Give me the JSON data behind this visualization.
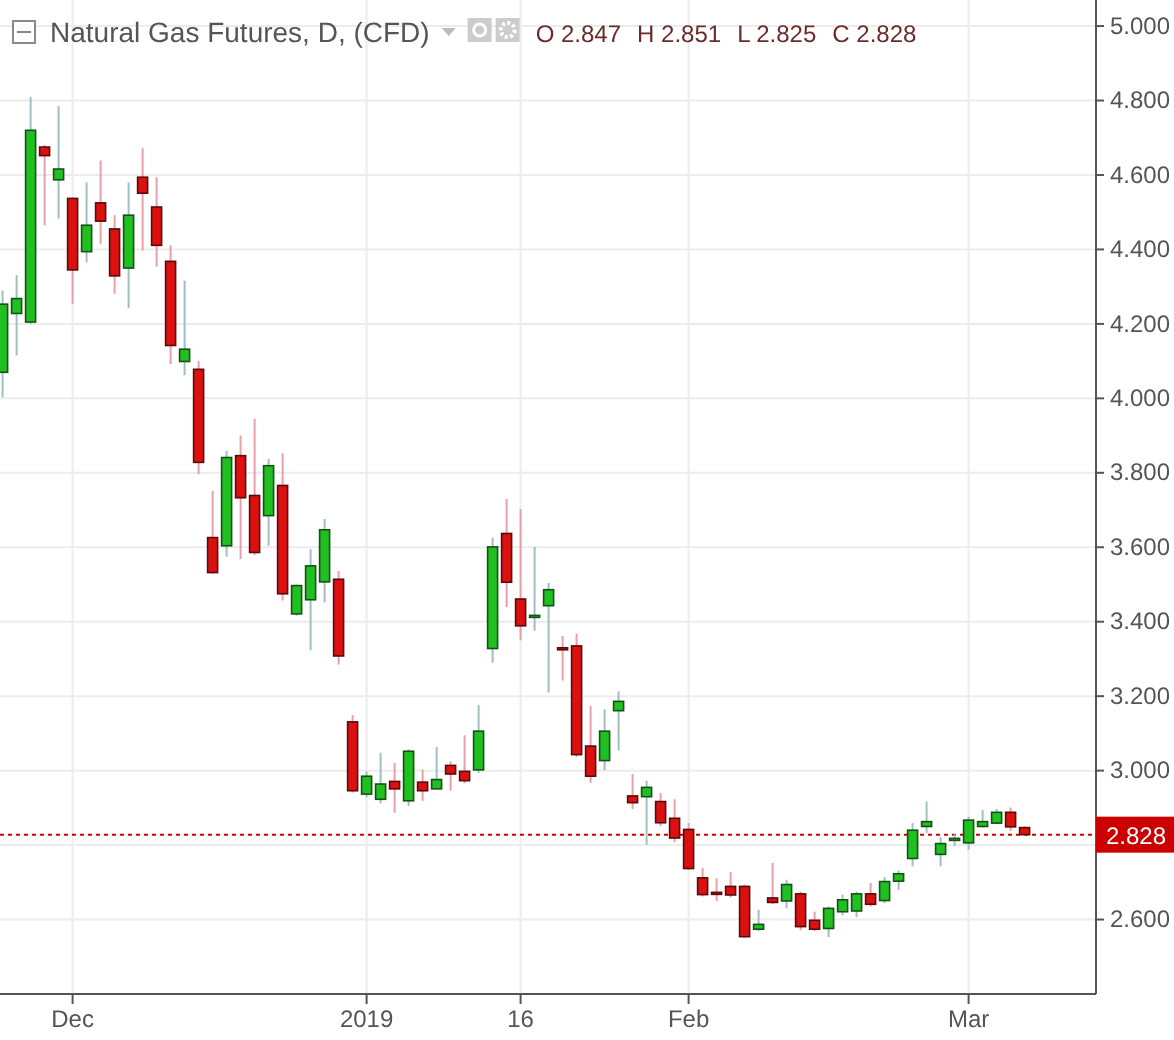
{
  "chart_data": {
    "type": "candlestick",
    "title": "Natural Gas Futures, D, (CFD)",
    "annotations": [
      "O 2.847",
      "H 2.851",
      "L 2.825",
      "C 2.828"
    ],
    "categories": [
      null,
      null,
      null,
      null,
      null,
      "Dec",
      null,
      null,
      null,
      null,
      null,
      null,
      null,
      null,
      null,
      null,
      null,
      null,
      null,
      null,
      null,
      null,
      null,
      null,
      null,
      null,
      "2019",
      null,
      null,
      null,
      null,
      null,
      null,
      null,
      null,
      null,
      null,
      "16",
      null,
      null,
      null,
      null,
      null,
      null,
      null,
      null,
      null,
      null,
      null,
      "Feb",
      null,
      null,
      null,
      null,
      null,
      null,
      null,
      null,
      null,
      null,
      null,
      null,
      null,
      null,
      null,
      null,
      null,
      null,
      null,
      "Mar",
      null,
      null,
      null,
      null,
      null,
      null,
      null,
      null,
      null
    ],
    "ohlc": [
      [
        4.07,
        4.29,
        4.003,
        4.253
      ],
      [
        4.228,
        4.331,
        4.115,
        4.268
      ],
      [
        4.205,
        4.81,
        4.2,
        4.72
      ],
      [
        4.675,
        4.681,
        4.465,
        4.652
      ],
      [
        4.587,
        4.785,
        4.483,
        4.616
      ],
      [
        4.537,
        4.54,
        4.254,
        4.345
      ],
      [
        4.394,
        4.58,
        4.365,
        4.465
      ],
      [
        4.525,
        4.639,
        4.415,
        4.476
      ],
      [
        4.455,
        4.492,
        4.281,
        4.329
      ],
      [
        4.35,
        4.58,
        4.243,
        4.492
      ],
      [
        4.594,
        4.672,
        4.397,
        4.551
      ],
      [
        4.514,
        4.594,
        4.354,
        4.411
      ],
      [
        4.368,
        4.411,
        4.092,
        4.142
      ],
      [
        4.099,
        4.316,
        4.062,
        4.132
      ],
      [
        4.078,
        4.101,
        3.796,
        3.828
      ],
      [
        3.626,
        3.751,
        3.529,
        3.532
      ],
      [
        3.604,
        3.859,
        3.575,
        3.841
      ],
      [
        3.846,
        3.9,
        3.568,
        3.733
      ],
      [
        3.739,
        3.945,
        3.579,
        3.586
      ],
      [
        3.685,
        3.837,
        3.604,
        3.819
      ],
      [
        3.766,
        3.852,
        3.457,
        3.475
      ],
      [
        3.421,
        3.5,
        3.416,
        3.497
      ],
      [
        3.459,
        3.595,
        3.323,
        3.55
      ],
      [
        3.507,
        3.676,
        3.452,
        3.647
      ],
      [
        3.514,
        3.536,
        3.285,
        3.308
      ],
      [
        3.131,
        3.149,
        2.941,
        2.946
      ],
      [
        2.937,
        2.998,
        2.928,
        2.985
      ],
      [
        2.923,
        3.048,
        2.912,
        2.964
      ],
      [
        2.971,
        3.021,
        2.887,
        2.951
      ],
      [
        2.919,
        3.057,
        2.905,
        3.052
      ],
      [
        2.969,
        3.003,
        2.919,
        2.946
      ],
      [
        2.951,
        3.063,
        2.951,
        2.976
      ],
      [
        3.014,
        3.025,
        2.946,
        2.991
      ],
      [
        2.998,
        3.095,
        2.966,
        2.973
      ],
      [
        3.002,
        3.176,
        2.994,
        3.106
      ],
      [
        3.328,
        3.626,
        3.29,
        3.601
      ],
      [
        3.637,
        3.73,
        3.439,
        3.506
      ],
      [
        3.461,
        3.703,
        3.35,
        3.389
      ],
      [
        3.415,
        3.601,
        3.376,
        3.417
      ],
      [
        3.443,
        3.504,
        3.21,
        3.486
      ],
      [
        3.33,
        3.362,
        3.242,
        3.327
      ],
      [
        3.335,
        3.368,
        3.037,
        3.043
      ],
      [
        3.066,
        3.174,
        2.967,
        2.985
      ],
      [
        3.027,
        3.165,
        3.001,
        3.106
      ],
      [
        3.161,
        3.213,
        3.054,
        3.186
      ],
      [
        2.932,
        2.991,
        2.897,
        2.914
      ],
      [
        2.93,
        2.973,
        2.801,
        2.955
      ],
      [
        2.917,
        2.94,
        2.851,
        2.86
      ],
      [
        2.872,
        2.923,
        2.808,
        2.819
      ],
      [
        2.842,
        2.859,
        2.733,
        2.737
      ],
      [
        2.712,
        2.739,
        2.662,
        2.667
      ],
      [
        2.673,
        2.711,
        2.65,
        2.67
      ],
      [
        2.689,
        2.728,
        2.659,
        2.666
      ],
      [
        2.689,
        2.694,
        2.551,
        2.554
      ],
      [
        2.574,
        2.626,
        2.569,
        2.587
      ],
      [
        2.658,
        2.752,
        2.642,
        2.646
      ],
      [
        2.65,
        2.707,
        2.63,
        2.694
      ],
      [
        2.669,
        2.675,
        2.571,
        2.581
      ],
      [
        2.598,
        2.621,
        2.569,
        2.574
      ],
      [
        2.576,
        2.635,
        2.553,
        2.63
      ],
      [
        2.621,
        2.667,
        2.612,
        2.653
      ],
      [
        2.623,
        2.675,
        2.607,
        2.669
      ],
      [
        2.669,
        2.698,
        2.635,
        2.641
      ],
      [
        2.651,
        2.714,
        2.644,
        2.702
      ],
      [
        2.703,
        2.732,
        2.68,
        2.723
      ],
      [
        2.764,
        2.859,
        2.743,
        2.84
      ],
      [
        2.85,
        2.917,
        2.833,
        2.863
      ],
      [
        2.775,
        2.822,
        2.743,
        2.804
      ],
      [
        2.816,
        2.829,
        2.797,
        2.818
      ],
      [
        2.806,
        2.876,
        2.788,
        2.867
      ],
      [
        2.85,
        2.894,
        2.847,
        2.863
      ],
      [
        2.859,
        2.897,
        2.856,
        2.888
      ],
      [
        2.888,
        2.901,
        2.838,
        2.849
      ],
      [
        2.847,
        2.851,
        2.825,
        2.828
      ],
      null,
      null,
      null,
      null,
      null
    ],
    "colors": [
      "#20c020",
      "#20c020",
      "#20c020",
      "#dd1010",
      "#20c020",
      "#dd1010",
      "#20c020",
      "#dd1010",
      "#dd1010",
      "#20c020",
      "#dd1010",
      "#dd1010",
      "#dd1010",
      "#20c020",
      "#dd1010",
      "#dd1010",
      "#20c020",
      "#dd1010",
      "#dd1010",
      "#20c020",
      "#dd1010",
      "#20c020",
      "#20c020",
      "#20c020",
      "#dd1010",
      "#dd1010",
      "#20c020",
      "#20c020",
      "#dd1010",
      "#20c020",
      "#dd1010",
      "#20c020",
      "#dd1010",
      "#dd1010",
      "#20c020",
      "#20c020",
      "#dd1010",
      "#dd1010",
      "#20c020",
      "#20c020",
      "#dd1010",
      "#dd1010",
      "#dd1010",
      "#20c020",
      "#20c020",
      "#dd1010",
      "#20c020",
      "#dd1010",
      "#dd1010",
      "#dd1010",
      "#dd1010",
      "#dd1010",
      "#dd1010",
      "#dd1010",
      "#20c020",
      "#dd1010",
      "#20c020",
      "#dd1010",
      "#dd1010",
      "#20c020",
      "#20c020",
      "#20c020",
      "#dd1010",
      "#20c020",
      "#20c020",
      "#20c020",
      "#20c020",
      "#20c020",
      "#20c020",
      "#20c020",
      "#20c020",
      "#20c020",
      "#dd1010",
      "#dd1010",
      null,
      null,
      null,
      null,
      null
    ],
    "ylim": [
      2.4,
      5.07
    ],
    "yticks": [
      {
        "value": 2.6,
        "label": "2.600"
      },
      {
        "value": 2.8,
        "label": null
      },
      {
        "value": 3,
        "label": "3.000"
      },
      {
        "value": 3.2,
        "label": "3.200"
      },
      {
        "value": 3.4,
        "label": "3.400"
      },
      {
        "value": 3.6,
        "label": "3.600"
      },
      {
        "value": 3.8,
        "label": "3.800"
      },
      {
        "value": 4,
        "label": "4.000"
      },
      {
        "value": 4.2,
        "label": "4.200"
      },
      {
        "value": 4.4,
        "label": "4.400"
      },
      {
        "value": 4.6,
        "label": "4.600"
      },
      {
        "value": 4.8,
        "label": "4.800"
      },
      {
        "value": 5,
        "label": "5.000"
      }
    ],
    "grid": true,
    "ref_lines": [
      {
        "axis": "y",
        "value": 2.828,
        "label": "2.828",
        "color": "#cc0000",
        "line_style": "dotted"
      }
    ]
  }
}
